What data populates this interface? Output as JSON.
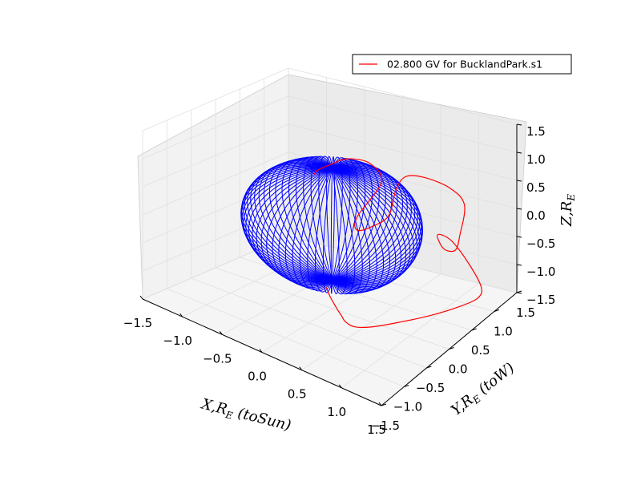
{
  "chart_data": {
    "type": "line",
    "projection": "3d",
    "title": "",
    "legend": {
      "placement": "top-right",
      "entries": [
        {
          "label": "02.800 GV   for BucklandPark.s1",
          "color": "#ff0000"
        }
      ]
    },
    "axes": {
      "x": {
        "label": "X,R_E (toSun)",
        "ticks": [
          "−1.5",
          "−1.0",
          "−0.5",
          "0.0",
          "0.5",
          "1.0",
          "1.5"
        ],
        "range": [
          -1.5,
          1.5
        ]
      },
      "y": {
        "label": "Y,R_E (toW)",
        "ticks": [
          "−1.5",
          "−1.0",
          "−0.5",
          "0.0",
          "0.5",
          "1.0",
          "1.5"
        ],
        "range": [
          -1.5,
          1.5
        ]
      },
      "z": {
        "label": "Z,R_E",
        "ticks": [
          "−1.5",
          "−1.0",
          "−0.5",
          "0.0",
          "0.5",
          "1.0",
          "1.5"
        ],
        "range": [
          -1.5,
          1.5
        ]
      }
    },
    "grid": true,
    "series": [
      {
        "name": "Earth wireframe",
        "color": "#0000ff",
        "kind": "sphere",
        "radius": 1.0,
        "meridians": 36
      },
      {
        "name": "02.800 GV   for BucklandPark.s1",
        "color": "#ff0000",
        "kind": "trajectory",
        "points": [
          [
            0.06,
            -0.23,
            -0.97
          ],
          [
            0.15,
            -0.3,
            -1.05
          ],
          [
            0.22,
            -0.34,
            -1.11
          ],
          [
            0.3,
            -0.38,
            -1.18
          ],
          [
            0.36,
            -0.4,
            -1.24
          ],
          [
            0.42,
            -0.42,
            -1.3
          ],
          [
            0.52,
            -0.38,
            -1.36
          ],
          [
            0.64,
            -0.2,
            -1.4
          ],
          [
            0.8,
            0.1,
            -1.42
          ],
          [
            1.0,
            0.45,
            -1.42
          ],
          [
            1.18,
            0.8,
            -1.4
          ],
          [
            1.26,
            1.05,
            -1.38
          ],
          [
            1.2,
            1.22,
            -1.32
          ],
          [
            1.0,
            1.3,
            -1.05
          ],
          [
            0.76,
            1.3,
            -0.7
          ],
          [
            0.7,
            1.1,
            -0.5
          ],
          [
            0.9,
            0.9,
            -0.55
          ],
          [
            0.98,
            1.02,
            -0.62
          ],
          [
            0.92,
            1.22,
            -0.5
          ],
          [
            0.86,
            1.42,
            -0.1
          ],
          [
            0.68,
            1.4,
            0.15
          ],
          [
            0.4,
            1.3,
            0.3
          ],
          [
            0.22,
            1.2,
            0.3
          ],
          [
            0.18,
            1.06,
            0.12
          ],
          [
            0.22,
            0.84,
            -0.2
          ],
          [
            0.18,
            0.55,
            -0.25
          ],
          [
            0.14,
            0.3,
            -0.2
          ],
          [
            0.2,
            0.2,
            0.12
          ],
          [
            0.38,
            0.42,
            0.7
          ],
          [
            0.36,
            0.2,
            1.15
          ],
          [
            0.22,
            -0.05,
            1.3
          ],
          [
            0.1,
            -0.2,
            1.22
          ],
          [
            -0.02,
            -0.28,
            1.1
          ],
          [
            -0.05,
            -0.3,
            1.02
          ]
        ]
      }
    ]
  }
}
